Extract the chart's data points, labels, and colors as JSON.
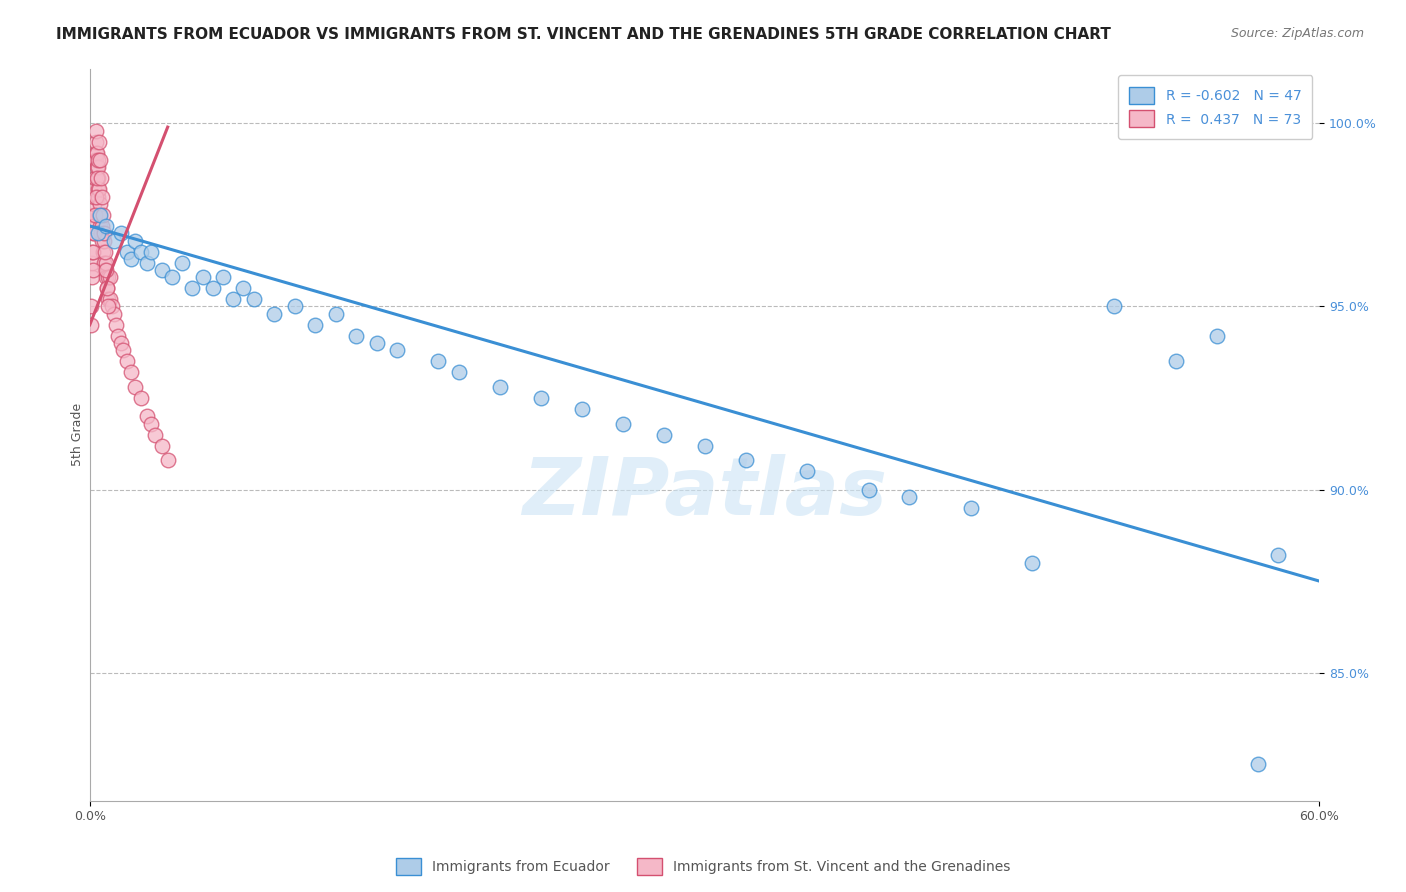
{
  "title": "IMMIGRANTS FROM ECUADOR VS IMMIGRANTS FROM ST. VINCENT AND THE GRENADINES 5TH GRADE CORRELATION CHART",
  "source": "Source: ZipAtlas.com",
  "ylabel": "5th Grade",
  "xlim": [
    0.0,
    60.0
  ],
  "ylim": [
    81.5,
    101.5
  ],
  "yticks": [
    85.0,
    90.0,
    95.0,
    100.0
  ],
  "ytick_labels": [
    "85.0%",
    "90.0%",
    "95.0%",
    "100.0%"
  ],
  "legend_labels": [
    "Immigrants from Ecuador",
    "Immigrants from St. Vincent and the Grenadines"
  ],
  "R_ecuador": -0.602,
  "N_ecuador": 47,
  "R_vincent": 0.437,
  "N_vincent": 73,
  "color_ecuador": "#aecce8",
  "color_vincent": "#f5b8c8",
  "line_color_ecuador": "#3a8fd4",
  "line_color_vincent": "#d45070",
  "ecuador_x": [
    0.4,
    0.5,
    0.8,
    1.2,
    1.5,
    1.8,
    2.0,
    2.2,
    2.5,
    2.8,
    3.0,
    3.5,
    4.0,
    4.5,
    5.0,
    5.5,
    6.0,
    6.5,
    7.0,
    7.5,
    8.0,
    9.0,
    10.0,
    11.0,
    12.0,
    13.0,
    14.0,
    15.0,
    17.0,
    18.0,
    20.0,
    22.0,
    24.0,
    26.0,
    28.0,
    30.0,
    32.0,
    35.0,
    38.0,
    40.0,
    43.0,
    46.0,
    50.0,
    53.0,
    55.0,
    58.0,
    57.0
  ],
  "ecuador_y": [
    97.0,
    97.5,
    97.2,
    96.8,
    97.0,
    96.5,
    96.3,
    96.8,
    96.5,
    96.2,
    96.5,
    96.0,
    95.8,
    96.2,
    95.5,
    95.8,
    95.5,
    95.8,
    95.2,
    95.5,
    95.2,
    94.8,
    95.0,
    94.5,
    94.8,
    94.2,
    94.0,
    93.8,
    93.5,
    93.2,
    92.8,
    92.5,
    92.2,
    91.8,
    91.5,
    91.2,
    90.8,
    90.5,
    90.0,
    89.8,
    89.5,
    88.0,
    95.0,
    93.5,
    94.2,
    88.2,
    82.5
  ],
  "vincent_x": [
    0.05,
    0.08,
    0.1,
    0.1,
    0.12,
    0.15,
    0.15,
    0.18,
    0.2,
    0.2,
    0.22,
    0.25,
    0.25,
    0.28,
    0.3,
    0.3,
    0.32,
    0.35,
    0.35,
    0.38,
    0.4,
    0.4,
    0.42,
    0.45,
    0.45,
    0.5,
    0.5,
    0.55,
    0.6,
    0.6,
    0.65,
    0.7,
    0.7,
    0.75,
    0.8,
    0.8,
    0.85,
    0.9,
    0.9,
    1.0,
    1.0,
    1.1,
    1.2,
    1.3,
    1.4,
    1.5,
    1.6,
    1.8,
    2.0,
    2.2,
    2.5,
    2.8,
    3.0,
    3.2,
    3.5,
    3.8,
    0.15,
    0.18,
    0.2,
    0.25,
    0.3,
    0.35,
    0.4,
    0.45,
    0.5,
    0.55,
    0.6,
    0.65,
    0.7,
    0.75,
    0.8,
    0.85,
    0.9
  ],
  "vincent_y": [
    94.5,
    95.0,
    95.8,
    96.2,
    96.5,
    97.0,
    97.5,
    97.2,
    97.8,
    98.0,
    98.2,
    98.5,
    99.0,
    99.2,
    99.5,
    99.8,
    99.0,
    98.8,
    99.2,
    98.5,
    98.2,
    98.8,
    98.0,
    97.5,
    98.2,
    97.8,
    97.2,
    97.0,
    96.8,
    97.2,
    96.5,
    96.2,
    96.8,
    96.0,
    95.8,
    96.2,
    95.5,
    95.2,
    95.8,
    95.2,
    95.8,
    95.0,
    94.8,
    94.5,
    94.2,
    94.0,
    93.8,
    93.5,
    93.2,
    92.8,
    92.5,
    92.0,
    91.8,
    91.5,
    91.2,
    90.8,
    96.0,
    96.5,
    97.0,
    97.5,
    98.0,
    98.5,
    99.0,
    99.5,
    99.0,
    98.5,
    98.0,
    97.5,
    97.0,
    96.5,
    96.0,
    95.5,
    95.0
  ],
  "watermark": "ZIPatlas",
  "background_color": "#ffffff",
  "grid_color": "#bbbbbb",
  "title_fontsize": 11,
  "axis_label_fontsize": 9,
  "tick_fontsize": 9,
  "legend_fontsize": 10,
  "source_fontsize": 9,
  "blue_line_x0": 0.0,
  "blue_line_y0": 97.2,
  "blue_line_x1": 60.0,
  "blue_line_y1": 87.5,
  "pink_line_x0": 0.0,
  "pink_line_y0": 94.5,
  "pink_line_x1": 3.8,
  "pink_line_y1": 99.9
}
